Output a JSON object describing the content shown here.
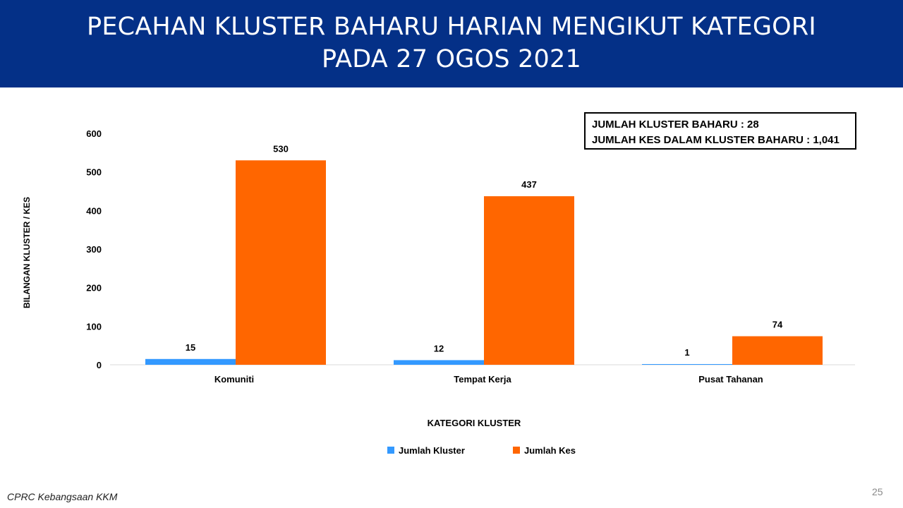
{
  "header": {
    "title": "PECAHAN KLUSTER BAHARU HARIAN MENGIKUT KATEGORI",
    "subtitle": "PADA 27 OGOS 2021"
  },
  "summary": {
    "line1": "JUMLAH KLUSTER BAHARU : 28",
    "line2": "JUMLAH KES DALAM KLUSTER BAHARU : 1,041"
  },
  "footer": {
    "source": "CPRC Kebangsaan KKM",
    "page_number": "25"
  },
  "colors": {
    "header_bg": "#043087",
    "kluster": "#3399FF",
    "kes": "#FF6600"
  },
  "chart_data": {
    "type": "bar",
    "categories": [
      "Komuniti",
      "Tempat Kerja",
      "Pusat Tahanan"
    ],
    "series": [
      {
        "name": "Jumlah Kluster",
        "values": [
          15,
          12,
          1
        ],
        "color": "#3399FF"
      },
      {
        "name": "Jumlah Kes",
        "values": [
          530,
          437,
          74
        ],
        "color": "#FF6600"
      }
    ],
    "xlabel": "KATEGORI KLUSTER",
    "ylabel": "BILANGAN KLUSTER / KES",
    "ylim": [
      0,
      600
    ],
    "yticks": [
      0,
      100,
      200,
      300,
      400,
      500,
      600
    ],
    "grid": false,
    "legend": "bottom"
  }
}
